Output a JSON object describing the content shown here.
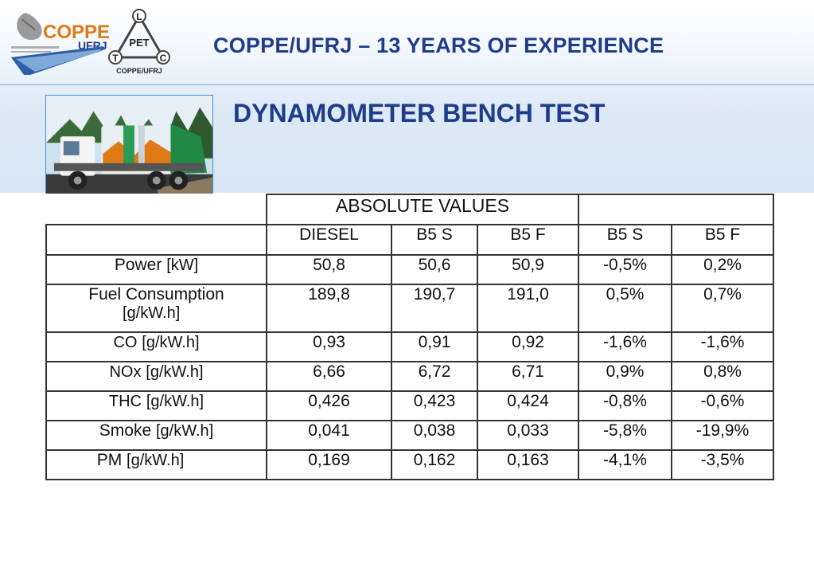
{
  "header": {
    "title": "COPPE/UFRJ – 13 YEARS OF EXPERIENCE",
    "logo_coppe_text": "COPPE",
    "logo_ufrj_text": "UFRJ",
    "logo_pet_text": "PET",
    "logo_pet_letters": [
      "L",
      "T",
      "C"
    ],
    "logo_pet_caption": "COPPE/UFRJ"
  },
  "section_title": "DYNAMOMETER BENCH TEST",
  "photo": {
    "subject": "garbage-truck-photo"
  },
  "table": {
    "group_header": "ABSOLUTE VALUES",
    "columns": [
      "DIESEL",
      "B5 S",
      "B5 F",
      "B5 S",
      "B5 F"
    ],
    "rows": [
      {
        "name": "Power",
        "unit": "[kW]",
        "values": [
          "50,8",
          "50,6",
          "50,9",
          "-0,5%",
          "0,2%"
        ]
      },
      {
        "name": "Fuel Consumption",
        "unit": "[g/kW.h]",
        "values": [
          "189,8",
          "190,7",
          "191,0",
          "0,5%",
          "0,7%"
        ]
      },
      {
        "name": "CO",
        "unit": "[g/kW.h]",
        "values": [
          "0,93",
          "0,91",
          "0,92",
          "-1,6%",
          "-1,6%"
        ]
      },
      {
        "name": "NOx",
        "unit": "[g/kW.h]",
        "values": [
          "6,66",
          "6,72",
          "6,71",
          "0,9%",
          "0,8%"
        ]
      },
      {
        "name": "THC",
        "unit": "[g/kW.h]",
        "values": [
          "0,426",
          "0,423",
          "0,424",
          "-0,8%",
          "-0,6%"
        ]
      },
      {
        "name": "Smoke",
        "unit": "[g/kW.h]",
        "values": [
          "0,041",
          "0,038",
          "0,033",
          "-5,8%",
          "-19,9%"
        ]
      },
      {
        "name": "PM",
        "unit": "[g/kW.h]",
        "values": [
          "0,169",
          "0,162",
          "0,163",
          "-4,1%",
          "-3,5%"
        ]
      }
    ]
  },
  "colors": {
    "title": "#1f3c8a",
    "rule": "#7fa9d6",
    "band": "#d6e6f5"
  }
}
